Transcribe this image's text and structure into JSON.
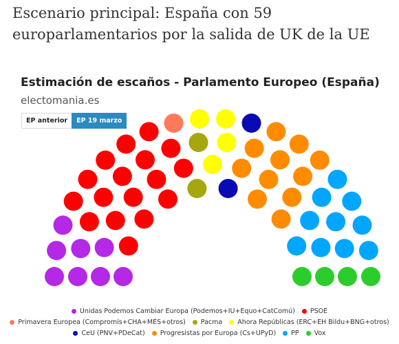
{
  "article": {
    "title": "Escenario principal: España con 59 europarlamentarios por la salida de UK de la UE"
  },
  "tabs": [
    {
      "label": "EP anterior",
      "active": false
    },
    {
      "label": "EP 19 marzo",
      "active": true
    }
  ],
  "chart_data": {
    "type": "parliament",
    "title": "Estimación de escaños - Parlamento Europeo (España)",
    "subtitle": "electomania.es",
    "total_seats": 59,
    "series": [
      {
        "name": "Unidas Podemos Cambiar Europa (Podemos+IU+Equo+CatComú)",
        "seats": 8,
        "color": "#b428e6"
      },
      {
        "name": "PSOE",
        "seats": 17,
        "color": "#ff0000"
      },
      {
        "name": "Primavera Europea (Compromís+CHA+MÉS+otros)",
        "seats": 1,
        "color": "#ff7a5a"
      },
      {
        "name": "Pacma",
        "seats": 2,
        "color": "#a6a60f"
      },
      {
        "name": "Ahora Repúblicas (ERC+EH Bildu+BNG+otros)",
        "seats": 4,
        "color": "#ffff00"
      },
      {
        "name": "CeU (PNV+PDeCat)",
        "seats": 2,
        "color": "#0a0ab4"
      },
      {
        "name": "Progresistas por Europa (Cs+UPyD)",
        "seats": 11,
        "color": "#ff8c00"
      },
      {
        "name": "PP",
        "seats": 10,
        "color": "#00a6ff"
      },
      {
        "name": "Vox",
        "seats": 4,
        "color": "#2dcc2d"
      }
    ],
    "legend_rows": [
      [
        0,
        1
      ],
      [
        2,
        3,
        4
      ],
      [
        5,
        6,
        7,
        8
      ]
    ]
  }
}
